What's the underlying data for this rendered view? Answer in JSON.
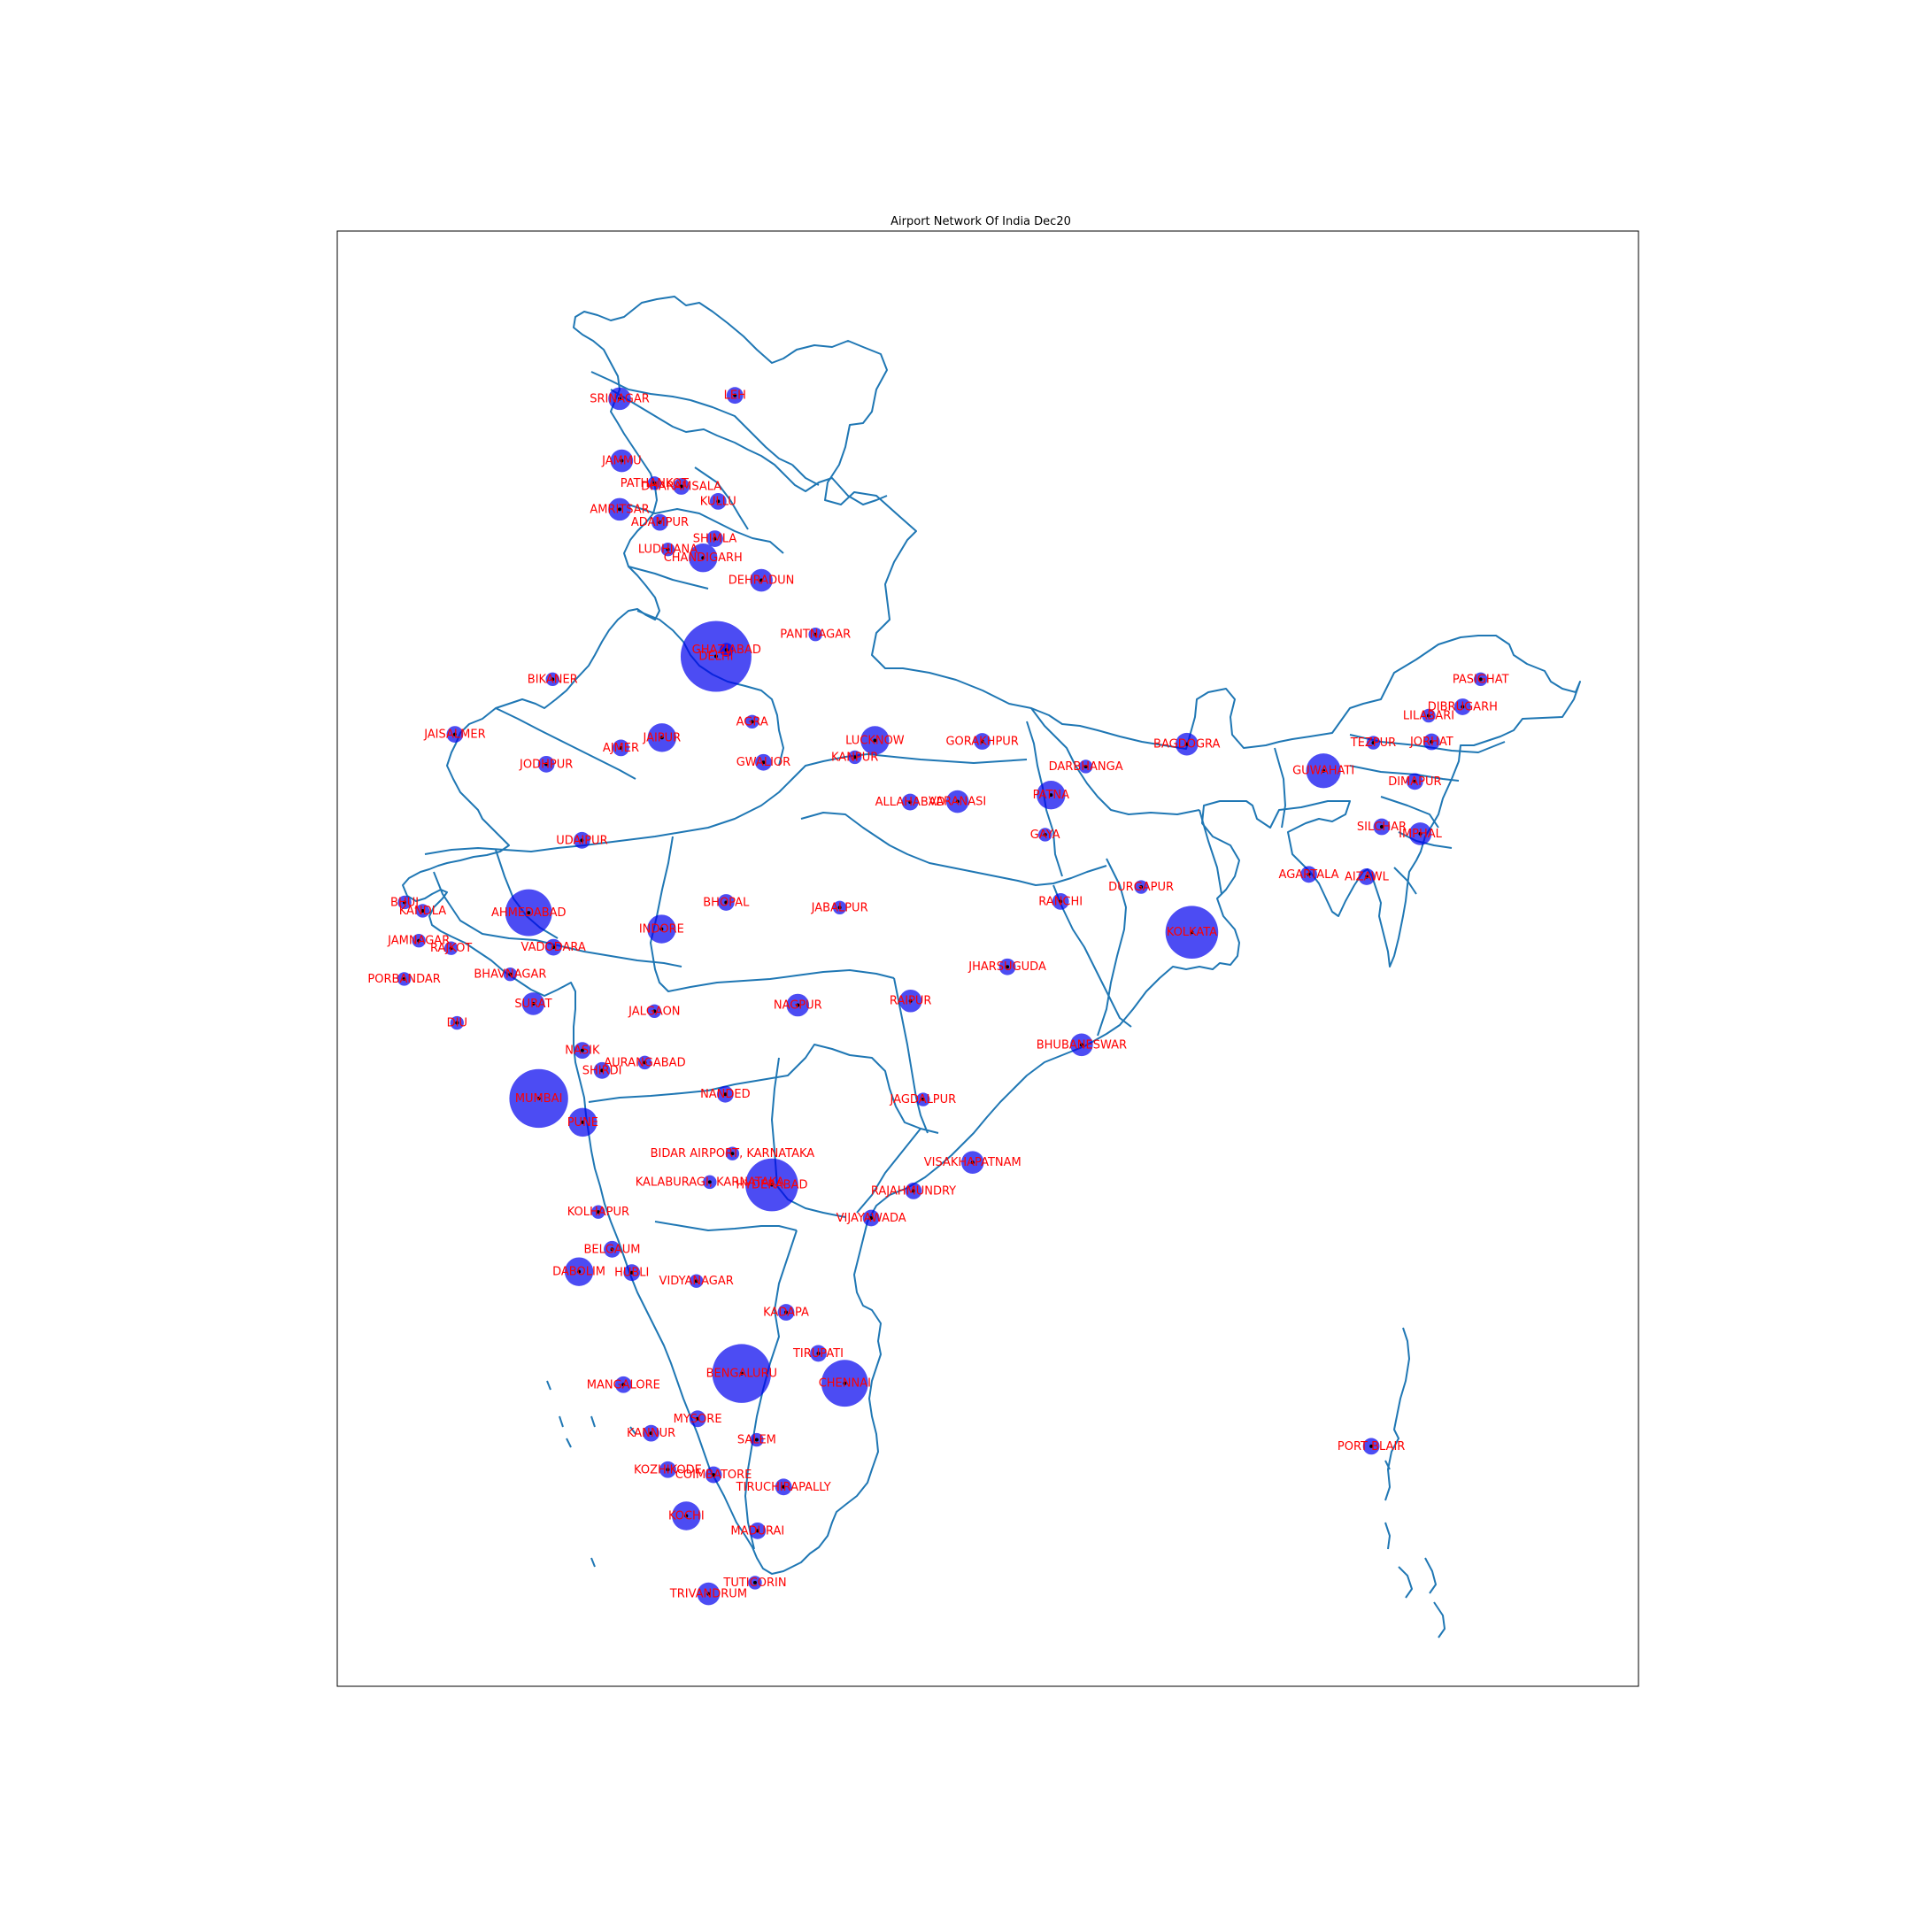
{
  "title": "Airport Network Of India Dec20",
  "colors": {
    "boundary": "#1f77b4",
    "bubble": "#0000ee",
    "bubble_opacity": 0.7,
    "label": "#ff0000",
    "node_dot": "#000000",
    "frame": "#000000"
  },
  "map_data": {
    "type": "bubble-map",
    "region": "India",
    "lon_range": [
      68,
      97.5
    ],
    "lat_range": [
      6.5,
      37.5
    ],
    "grid": false,
    "axes_ticks": false,
    "airports": [
      {
        "name": "SRINAGAR",
        "lon": 74.8,
        "lat": 34.08,
        "size": 2
      },
      {
        "name": "LEH",
        "lon": 77.55,
        "lat": 34.15,
        "size": 1
      },
      {
        "name": "JAMMU",
        "lon": 74.85,
        "lat": 32.75,
        "size": 2
      },
      {
        "name": "PATHANKOT",
        "lon": 75.63,
        "lat": 32.27,
        "size": 0.5
      },
      {
        "name": "DHARAMSALA",
        "lon": 76.27,
        "lat": 32.2,
        "size": 1
      },
      {
        "name": "KULLU",
        "lon": 77.15,
        "lat": 31.88,
        "size": 1
      },
      {
        "name": "AMRITSAR",
        "lon": 74.8,
        "lat": 31.71,
        "size": 2
      },
      {
        "name": "ADAMPUR",
        "lon": 75.76,
        "lat": 31.43,
        "size": 1
      },
      {
        "name": "LUDHIANA",
        "lon": 75.95,
        "lat": 30.85,
        "size": 0.5
      },
      {
        "name": "SHIMLA",
        "lon": 77.07,
        "lat": 31.08,
        "size": 1
      },
      {
        "name": "CHANDIGARH",
        "lon": 76.79,
        "lat": 30.67,
        "size": 3
      },
      {
        "name": "DEHRADUN",
        "lon": 78.18,
        "lat": 30.19,
        "size": 2
      },
      {
        "name": "PANTNAGAR",
        "lon": 79.47,
        "lat": 29.03,
        "size": 0.5
      },
      {
        "name": "DELHI",
        "lon": 77.1,
        "lat": 28.56,
        "size": 10
      },
      {
        "name": "GHAZIABAD",
        "lon": 77.35,
        "lat": 28.7,
        "size": 0.5
      },
      {
        "name": "BIKANER",
        "lon": 73.2,
        "lat": 28.07,
        "size": 0.5
      },
      {
        "name": "JAISALMER",
        "lon": 70.87,
        "lat": 26.89,
        "size": 1
      },
      {
        "name": "JAIPUR",
        "lon": 75.81,
        "lat": 26.82,
        "size": 3
      },
      {
        "name": "AJMER",
        "lon": 74.83,
        "lat": 26.6,
        "size": 1
      },
      {
        "name": "AGRA",
        "lon": 77.96,
        "lat": 27.16,
        "size": 0.5
      },
      {
        "name": "JODHPUR",
        "lon": 73.05,
        "lat": 26.25,
        "size": 1
      },
      {
        "name": "GWALIOR",
        "lon": 78.23,
        "lat": 26.29,
        "size": 1
      },
      {
        "name": "LUCKNOW",
        "lon": 80.89,
        "lat": 26.76,
        "size": 3
      },
      {
        "name": "KANPUR",
        "lon": 80.41,
        "lat": 26.4,
        "size": 0.5
      },
      {
        "name": "GORAKHPUR",
        "lon": 83.45,
        "lat": 26.74,
        "size": 1
      },
      {
        "name": "DARBHANGA",
        "lon": 85.92,
        "lat": 26.2,
        "size": 0.5
      },
      {
        "name": "BAGDOGRA",
        "lon": 88.33,
        "lat": 26.68,
        "size": 2
      },
      {
        "name": "GUWAHATI",
        "lon": 91.59,
        "lat": 26.11,
        "size": 4
      },
      {
        "name": "PASIGHAT",
        "lon": 95.34,
        "lat": 28.07,
        "size": 0.5
      },
      {
        "name": "DIBRUGARH",
        "lon": 94.91,
        "lat": 27.48,
        "size": 1
      },
      {
        "name": "LILABARI",
        "lon": 94.1,
        "lat": 27.29,
        "size": 0.5
      },
      {
        "name": "TEZPUR",
        "lon": 92.78,
        "lat": 26.71,
        "size": 0.5
      },
      {
        "name": "JORHAT",
        "lon": 94.17,
        "lat": 26.73,
        "size": 1
      },
      {
        "name": "DIMAPUR",
        "lon": 93.77,
        "lat": 25.88,
        "size": 1
      },
      {
        "name": "SILCHAR",
        "lon": 92.98,
        "lat": 24.91,
        "size": 1
      },
      {
        "name": "IMPHAL",
        "lon": 93.9,
        "lat": 24.76,
        "size": 2
      },
      {
        "name": "AGARTALA",
        "lon": 91.24,
        "lat": 23.89,
        "size": 1
      },
      {
        "name": "AIZAWL",
        "lon": 92.62,
        "lat": 23.84,
        "size": 1
      },
      {
        "name": "ALLAHABAD",
        "lon": 81.73,
        "lat": 25.44,
        "size": 1
      },
      {
        "name": "VARANASI",
        "lon": 82.86,
        "lat": 25.45,
        "size": 2
      },
      {
        "name": "PATNA",
        "lon": 85.09,
        "lat": 25.59,
        "size": 3
      },
      {
        "name": "GAYA",
        "lon": 84.95,
        "lat": 24.74,
        "size": 0.5
      },
      {
        "name": "UDAIPUR",
        "lon": 73.9,
        "lat": 24.62,
        "size": 1
      },
      {
        "name": "BHUJ",
        "lon": 69.67,
        "lat": 23.29,
        "size": 0.5
      },
      {
        "name": "KANDLA",
        "lon": 70.1,
        "lat": 23.11,
        "size": 0.5
      },
      {
        "name": "AHMEDABAD",
        "lon": 72.63,
        "lat": 23.07,
        "size": 6
      },
      {
        "name": "BHOPAL",
        "lon": 77.34,
        "lat": 23.29,
        "size": 1
      },
      {
        "name": "JABALPUR",
        "lon": 80.05,
        "lat": 23.18,
        "size": 0.5
      },
      {
        "name": "RANCHI",
        "lon": 85.32,
        "lat": 23.31,
        "size": 1
      },
      {
        "name": "DURGAPUR",
        "lon": 87.24,
        "lat": 23.62,
        "size": 0.5
      },
      {
        "name": "KOLKATA",
        "lon": 88.45,
        "lat": 22.65,
        "size": 7
      },
      {
        "name": "INDORE",
        "lon": 75.8,
        "lat": 22.72,
        "size": 3
      },
      {
        "name": "JAMNAGAR",
        "lon": 70.01,
        "lat": 22.47,
        "size": 0.5
      },
      {
        "name": "RAJKOT",
        "lon": 70.78,
        "lat": 22.31,
        "size": 0.5
      },
      {
        "name": "VADODARA",
        "lon": 73.22,
        "lat": 22.33,
        "size": 1
      },
      {
        "name": "JHARSUGUDA",
        "lon": 84.05,
        "lat": 21.91,
        "size": 1
      },
      {
        "name": "BHAVNAGAR",
        "lon": 72.19,
        "lat": 21.75,
        "size": 0.5
      },
      {
        "name": "PORBANDAR",
        "lon": 69.66,
        "lat": 21.65,
        "size": 0.5
      },
      {
        "name": "SURAT",
        "lon": 72.74,
        "lat": 21.12,
        "size": 2
      },
      {
        "name": "JALGAON",
        "lon": 75.63,
        "lat": 20.96,
        "size": 0.5
      },
      {
        "name": "NAGPUR",
        "lon": 79.05,
        "lat": 21.09,
        "size": 2
      },
      {
        "name": "RAIPUR",
        "lon": 81.74,
        "lat": 21.18,
        "size": 2
      },
      {
        "name": "BHUBANESWAR",
        "lon": 85.82,
        "lat": 20.24,
        "size": 2
      },
      {
        "name": "DIU",
        "lon": 70.92,
        "lat": 20.71,
        "size": 0.5
      },
      {
        "name": "NASIK",
        "lon": 73.91,
        "lat": 20.12,
        "size": 1
      },
      {
        "name": "AURANGABAD",
        "lon": 75.4,
        "lat": 19.86,
        "size": 0.5
      },
      {
        "name": "SHIRDI",
        "lon": 74.38,
        "lat": 19.69,
        "size": 1
      },
      {
        "name": "MUMBAI",
        "lon": 72.87,
        "lat": 19.09,
        "size": 8
      },
      {
        "name": "PUNE",
        "lon": 73.92,
        "lat": 18.58,
        "size": 3
      },
      {
        "name": "NANDED",
        "lon": 77.32,
        "lat": 19.18,
        "size": 1
      },
      {
        "name": "JAGDALPUR",
        "lon": 82.04,
        "lat": 19.07,
        "size": 0.5
      },
      {
        "name": "BIDAR AIRPORT, KARNATAKA",
        "lon": 77.49,
        "lat": 17.91,
        "size": 0.5
      },
      {
        "name": "HYDERABAD",
        "lon": 78.43,
        "lat": 17.24,
        "size": 7
      },
      {
        "name": "KALABURAGI, KARNATAKA",
        "lon": 76.95,
        "lat": 17.3,
        "size": 0.5
      },
      {
        "name": "VISAKHAPATNAM",
        "lon": 83.22,
        "lat": 17.72,
        "size": 2
      },
      {
        "name": "RAJAHMUNDRY",
        "lon": 81.81,
        "lat": 17.11,
        "size": 1
      },
      {
        "name": "VIJAYAWADA",
        "lon": 80.8,
        "lat": 16.53,
        "size": 1
      },
      {
        "name": "KOLHAPUR",
        "lon": 74.29,
        "lat": 16.66,
        "size": 0.5
      },
      {
        "name": "BELGAUM",
        "lon": 74.62,
        "lat": 15.86,
        "size": 1
      },
      {
        "name": "DABOLIM",
        "lon": 73.83,
        "lat": 15.38,
        "size": 3
      },
      {
        "name": "HUBLI",
        "lon": 75.09,
        "lat": 15.36,
        "size": 1
      },
      {
        "name": "VIDYANAGAR",
        "lon": 76.63,
        "lat": 15.18,
        "size": 0.5
      },
      {
        "name": "KADAPA",
        "lon": 78.77,
        "lat": 14.51,
        "size": 1
      },
      {
        "name": "TIRUPATI",
        "lon": 79.54,
        "lat": 13.63,
        "size": 1
      },
      {
        "name": "MANGALORE",
        "lon": 74.89,
        "lat": 12.96,
        "size": 1
      },
      {
        "name": "BENGALURU",
        "lon": 77.71,
        "lat": 13.2,
        "size": 8
      },
      {
        "name": "CHENNAI",
        "lon": 80.17,
        "lat": 12.99,
        "size": 6
      },
      {
        "name": "MYSORE",
        "lon": 76.66,
        "lat": 12.23,
        "size": 1
      },
      {
        "name": "KANNUR",
        "lon": 75.55,
        "lat": 11.92,
        "size": 1
      },
      {
        "name": "SALEM",
        "lon": 78.07,
        "lat": 11.78,
        "size": 0.5
      },
      {
        "name": "KOZHIKODE",
        "lon": 75.95,
        "lat": 11.14,
        "size": 1
      },
      {
        "name": "COIMBATORE",
        "lon": 77.04,
        "lat": 11.03,
        "size": 1
      },
      {
        "name": "TIRUCHIRAPALLY",
        "lon": 78.71,
        "lat": 10.77,
        "size": 1
      },
      {
        "name": "KOCHI",
        "lon": 76.39,
        "lat": 10.15,
        "size": 3
      },
      {
        "name": "MADURAI",
        "lon": 78.09,
        "lat": 9.83,
        "size": 1
      },
      {
        "name": "TUTICORIN",
        "lon": 78.03,
        "lat": 8.72,
        "size": 0.5
      },
      {
        "name": "TRIVANDRUM",
        "lon": 76.92,
        "lat": 8.48,
        "size": 2
      },
      {
        "name": "PORT BLAIR",
        "lon": 92.73,
        "lat": 11.64,
        "size": 1
      }
    ]
  }
}
